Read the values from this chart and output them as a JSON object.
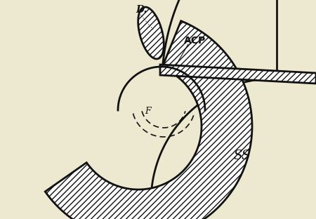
{
  "background_color": "#ede8d0",
  "line_color": "#111111",
  "label_D": "D.",
  "label_ACP": "ACP",
  "label_F": "F",
  "label_SS": "SS",
  "figsize": [
    4.5,
    3.12
  ],
  "dpi": 100
}
